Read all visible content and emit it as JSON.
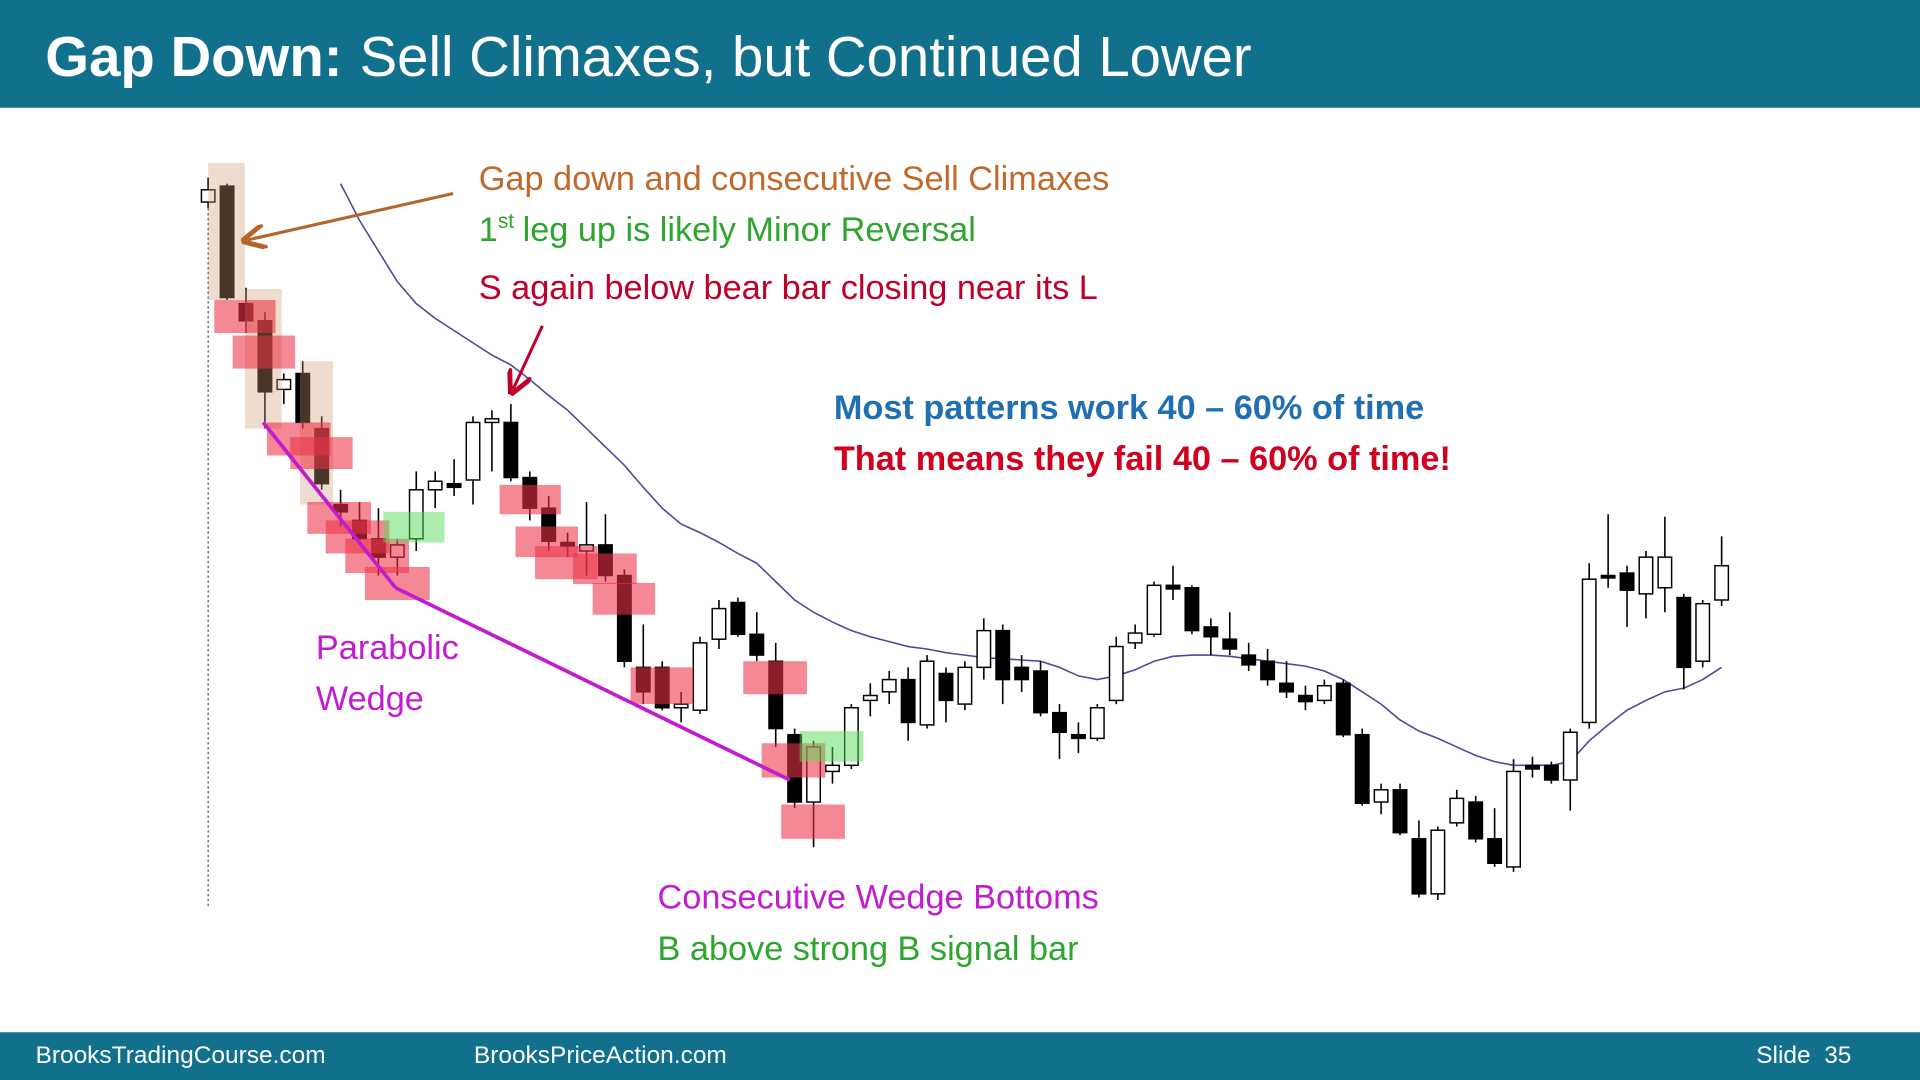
{
  "header": {
    "title_bold": "Gap Down:",
    "title_rest": "Sell Climaxes, but Continued Lower"
  },
  "annotations": {
    "gap_down": "Gap down and consecutive Sell Climaxes",
    "first_leg": {
      "number": "1",
      "suffix": "st",
      "text": "leg up is likely Minor Reversal"
    },
    "sell_again": "S again below bear bar closing near its L",
    "most_patterns": "Most patterns work 40 – 60% of time",
    "fail": "That means they fail 40 – 60% of time!",
    "parabolic": "Parabolic",
    "wedge": "Wedge",
    "wedge_bottoms": "Consecutive Wedge Bottoms",
    "buy_above": "B above strong B signal bar"
  },
  "footer": {
    "left": "BrooksTradingCourse.com",
    "middle": "BrooksPriceAction.com",
    "slide": "Slide  35"
  },
  "chart_data": {
    "type": "candlestick",
    "ylim": [
      0,
      640
    ],
    "up_color": "#ffffff",
    "down_color": "#000000",
    "open": [
      595,
      608,
      512,
      498,
      442,
      455,
      410,
      348,
      335,
      320,
      305,
      320,
      360,
      365,
      368,
      415,
      415,
      370,
      345,
      317,
      310,
      315,
      290,
      215,
      215,
      182,
      180,
      238,
      268,
      242,
      220,
      160,
      105,
      130,
      135,
      188,
      195,
      205,
      168,
      210,
      185,
      215,
      245,
      215,
      212,
      178,
      160,
      157,
      188,
      235,
      242,
      282,
      280,
      248,
      238,
      225,
      220,
      202,
      192,
      188,
      202,
      160,
      105,
      115,
      75,
      30,
      88,
      105,
      75,
      52,
      135,
      135,
      123,
      170,
      290,
      292,
      275,
      280,
      272,
      220,
      270
    ],
    "high": [
      615,
      610,
      525,
      505,
      455,
      465,
      420,
      360,
      350,
      345,
      320,
      375,
      375,
      385,
      420,
      425,
      430,
      375,
      355,
      325,
      350,
      340,
      295,
      250,
      220,
      195,
      240,
      270,
      272,
      260,
      235,
      165,
      155,
      150,
      185,
      202,
      212,
      215,
      225,
      215,
      220,
      255,
      250,
      225,
      220,
      185,
      170,
      185,
      240,
      250,
      285,
      298,
      282,
      255,
      260,
      235,
      230,
      220,
      200,
      205,
      205,
      165,
      120,
      120,
      90,
      85,
      115,
      110,
      100,
      140,
      142,
      138,
      165,
      300,
      340,
      298,
      310,
      338,
      275,
      270,
      322
    ],
    "low": [
      590,
      515,
      488,
      410,
      430,
      410,
      360,
      330,
      315,
      290,
      290,
      310,
      345,
      355,
      348,
      375,
      367,
      335,
      310,
      305,
      290,
      285,
      215,
      185,
      180,
      170,
      177,
      230,
      240,
      220,
      150,
      100,
      68,
      120,
      132,
      175,
      185,
      155,
      165,
      170,
      180,
      205,
      185,
      195,
      175,
      140,
      145,
      155,
      185,
      230,
      240,
      270,
      242,
      225,
      225,
      212,
      200,
      190,
      180,
      185,
      158,
      102,
      95,
      78,
      27,
      25,
      85,
      72,
      52,
      48,
      125,
      120,
      98,
      165,
      280,
      248,
      255,
      260,
      197,
      215,
      265
    ],
    "close": [
      605,
      517,
      498,
      440,
      450,
      415,
      365,
      342,
      320,
      305,
      315,
      360,
      367,
      362,
      415,
      418,
      370,
      345,
      318,
      314,
      315,
      290,
      220,
      195,
      182,
      185,
      235,
      263,
      242,
      225,
      165,
      105,
      150,
      135,
      182,
      192,
      205,
      170,
      220,
      188,
      215,
      245,
      205,
      205,
      178,
      162,
      157,
      182,
      232,
      243,
      282,
      279,
      245,
      240,
      230,
      217,
      205,
      195,
      187,
      200,
      160,
      104,
      115,
      80,
      30,
      82,
      108,
      75,
      55,
      130,
      132,
      123,
      162,
      287,
      288,
      278,
      305,
      305,
      215,
      267,
      298
    ],
    "moving_average": {
      "color": "#4b4b9e",
      "values": [
        null,
        null,
        null,
        null,
        null,
        null,
        null,
        610,
        580,
        555,
        530,
        512,
        500,
        490,
        480,
        470,
        462,
        450,
        437,
        425,
        410,
        395,
        380,
        362,
        345,
        332,
        325,
        317,
        308,
        300,
        285,
        270,
        260,
        252,
        245,
        240,
        236,
        232,
        230,
        227,
        225,
        223,
        222,
        221,
        220,
        215,
        208,
        205,
        208,
        213,
        220,
        224,
        225,
        225,
        224,
        222,
        220,
        218,
        216,
        212,
        205,
        195,
        185,
        172,
        163,
        157,
        150,
        143,
        138,
        135,
        135,
        135,
        138,
        155,
        168,
        180,
        188,
        195,
        198,
        205,
        215
      ]
    }
  }
}
